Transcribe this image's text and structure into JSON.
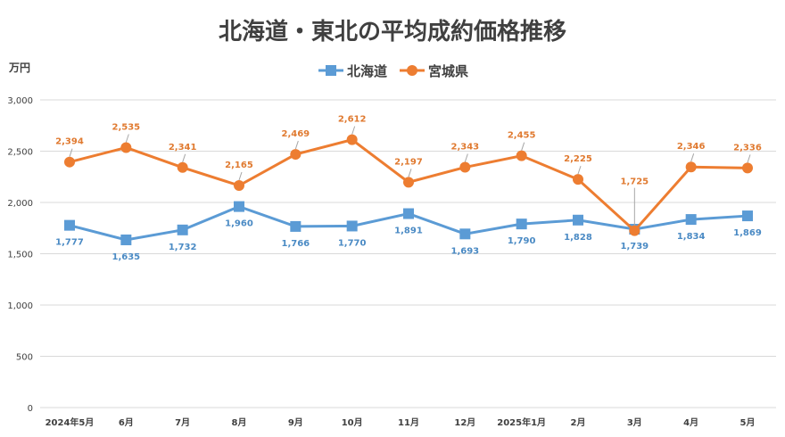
{
  "chart_data": {
    "type": "line",
    "title": "北海道・東北の平均成約価格推移",
    "unit_label": "万円",
    "categories": [
      "2024年5月",
      "6月",
      "7月",
      "8月",
      "9月",
      "10月",
      "11月",
      "12月",
      "2025年1月",
      "2月",
      "3月",
      "4月",
      "5月"
    ],
    "ylim": [
      0,
      3000
    ],
    "yticks": [
      0,
      500,
      1000,
      1500,
      2000,
      2500,
      3000
    ],
    "ytick_labels": [
      "0",
      "500",
      "1,000",
      "1,500",
      "2,000",
      "2,500",
      "3,000"
    ],
    "grid": true,
    "legend_position": "top-center",
    "series": [
      {
        "name": "北海道",
        "color": "#5b9bd5",
        "marker": "square",
        "values": [
          1777,
          1635,
          1732,
          1960,
          1766,
          1770,
          1891,
          1693,
          1790,
          1828,
          1739,
          1834,
          1869
        ],
        "labels": [
          "1,777",
          "1,635",
          "1,732",
          "1,960",
          "1,766",
          "1,770",
          "1,891",
          "1,693",
          "1,790",
          "1,828",
          "1,739",
          "1,834",
          "1,869"
        ]
      },
      {
        "name": "宮城県",
        "color": "#ed7d31",
        "marker": "circle",
        "values": [
          2394,
          2535,
          2341,
          2165,
          2469,
          2612,
          2197,
          2343,
          2455,
          2225,
          1725,
          2346,
          2336
        ],
        "labels": [
          "2,394",
          "2,535",
          "2,341",
          "2,165",
          "2,469",
          "2,612",
          "2,197",
          "2,343",
          "2,455",
          "2,225",
          "1,725",
          "2,346",
          "2,336"
        ]
      }
    ]
  }
}
